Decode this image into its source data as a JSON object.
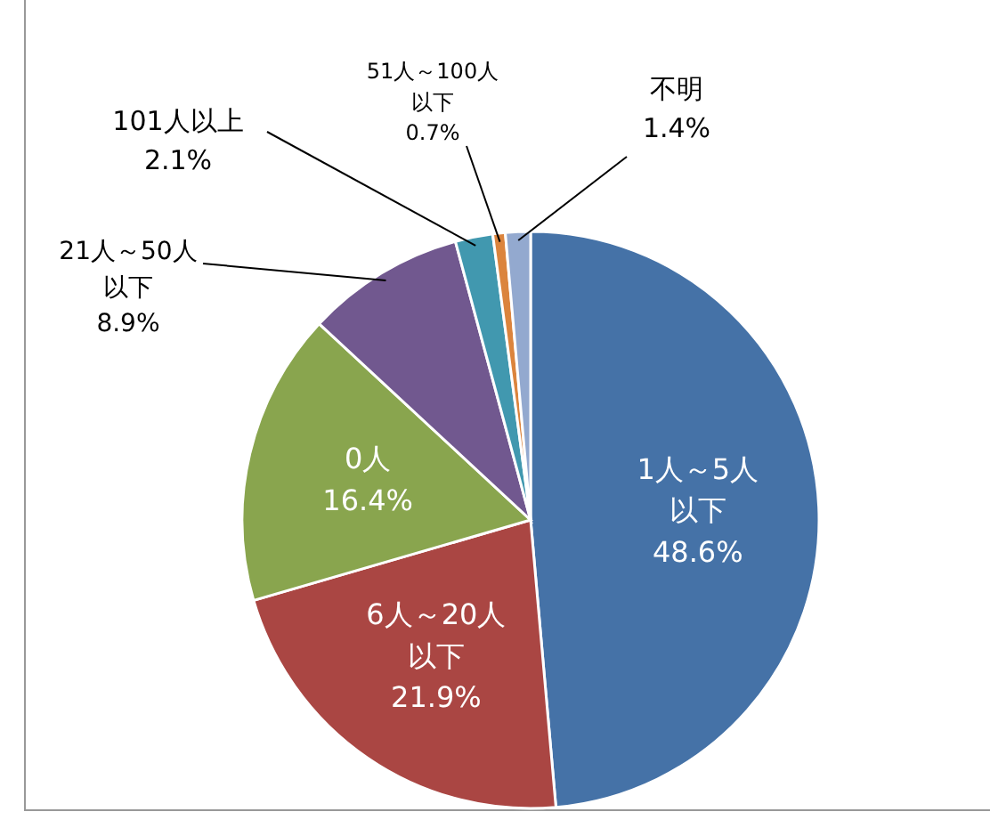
{
  "chart_data": {
    "type": "pie",
    "categories": [
      "1人～5人以下",
      "6人～20人以下",
      "0人",
      "21人～50人以下",
      "101人以上",
      "51人～100人以下",
      "不明"
    ],
    "values": [
      48.6,
      21.9,
      16.4,
      8.9,
      2.1,
      0.7,
      1.4
    ],
    "value_labels": [
      "48.6%",
      "21.9%",
      "16.4%",
      "8.9%",
      "2.1%",
      "0.7%",
      "1.4%"
    ],
    "colors": [
      "#4572a7",
      "#aa4643",
      "#89a54e",
      "#71588f",
      "#4198af",
      "#db843d",
      "#93a9cf"
    ],
    "legend": false
  }
}
